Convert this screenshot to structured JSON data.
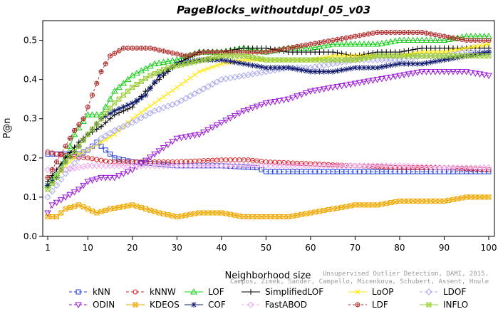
{
  "chart_data": {
    "type": "line",
    "title": "PageBlocks_withoutdupl_05_v03",
    "xlabel": "Neighborhood size",
    "ylabel": "P@n",
    "xlim": [
      1,
      100
    ],
    "ylim": [
      0,
      0.55
    ],
    "x_ticks": [
      1,
      10,
      20,
      30,
      40,
      50,
      60,
      70,
      80,
      90,
      100
    ],
    "y_ticks": [
      0.0,
      0.1,
      0.2,
      0.3,
      0.4,
      0.5
    ],
    "grid": false,
    "legend_position": "bottom",
    "credit": "Unsupervised Outlier Detection, DAMI, 2015.\nCampos, Zimek, Sander, Campello, Micenkova, Schubert, Assent, Houle",
    "series": [
      {
        "name": "kNN",
        "color": "#1f3fd6",
        "marker": "square-open",
        "dash": "4,3",
        "points": [
          [
            1,
            0.21
          ],
          [
            2,
            0.21
          ],
          [
            5,
            0.21
          ],
          [
            8,
            0.21
          ],
          [
            10,
            0.22
          ],
          [
            12,
            0.24
          ],
          [
            14,
            0.22
          ],
          [
            16,
            0.2
          ],
          [
            20,
            0.19
          ],
          [
            25,
            0.185
          ],
          [
            30,
            0.18
          ],
          [
            40,
            0.18
          ],
          [
            48,
            0.175
          ],
          [
            50,
            0.165
          ],
          [
            60,
            0.165
          ],
          [
            70,
            0.165
          ],
          [
            80,
            0.165
          ],
          [
            90,
            0.165
          ],
          [
            100,
            0.165
          ]
        ]
      },
      {
        "name": "kNNW",
        "color": "#d62020",
        "marker": "circle-open",
        "dash": "4,3",
        "points": [
          [
            1,
            0.215
          ],
          [
            3,
            0.21
          ],
          [
            6,
            0.205
          ],
          [
            10,
            0.2
          ],
          [
            15,
            0.19
          ],
          [
            20,
            0.19
          ],
          [
            30,
            0.19
          ],
          [
            40,
            0.195
          ],
          [
            46,
            0.195
          ],
          [
            50,
            0.19
          ],
          [
            60,
            0.185
          ],
          [
            70,
            0.18
          ],
          [
            80,
            0.175
          ],
          [
            90,
            0.175
          ],
          [
            100,
            0.17
          ]
        ]
      },
      {
        "name": "LOF",
        "color": "#19cc19",
        "marker": "triangle-up-open",
        "dash": "",
        "points": [
          [
            1,
            0.13
          ],
          [
            3,
            0.16
          ],
          [
            5,
            0.2
          ],
          [
            7,
            0.26
          ],
          [
            10,
            0.31
          ],
          [
            13,
            0.31
          ],
          [
            16,
            0.37
          ],
          [
            20,
            0.41
          ],
          [
            25,
            0.44
          ],
          [
            30,
            0.45
          ],
          [
            35,
            0.47
          ],
          [
            40,
            0.47
          ],
          [
            45,
            0.48
          ],
          [
            50,
            0.47
          ],
          [
            55,
            0.48
          ],
          [
            60,
            0.48
          ],
          [
            65,
            0.49
          ],
          [
            70,
            0.49
          ],
          [
            75,
            0.49
          ],
          [
            80,
            0.5
          ],
          [
            85,
            0.5
          ],
          [
            90,
            0.5
          ],
          [
            95,
            0.51
          ],
          [
            100,
            0.51
          ]
        ]
      },
      {
        "name": "SimplifiedLOF",
        "color": "#000000",
        "marker": "plus",
        "dash": "",
        "points": [
          [
            1,
            0.14
          ],
          [
            3,
            0.17
          ],
          [
            5,
            0.2
          ],
          [
            8,
            0.24
          ],
          [
            10,
            0.26
          ],
          [
            13,
            0.28
          ],
          [
            16,
            0.31
          ],
          [
            20,
            0.33
          ],
          [
            23,
            0.37
          ],
          [
            26,
            0.4
          ],
          [
            30,
            0.44
          ],
          [
            35,
            0.47
          ],
          [
            40,
            0.47
          ],
          [
            45,
            0.48
          ],
          [
            50,
            0.48
          ],
          [
            55,
            0.47
          ],
          [
            60,
            0.47
          ],
          [
            65,
            0.47
          ],
          [
            70,
            0.46
          ],
          [
            75,
            0.47
          ],
          [
            80,
            0.47
          ],
          [
            85,
            0.48
          ],
          [
            90,
            0.48
          ],
          [
            95,
            0.48
          ],
          [
            100,
            0.48
          ]
        ]
      },
      {
        "name": "LoOP",
        "color": "#ffe600",
        "marker": "x",
        "dash": "",
        "points": [
          [
            1,
            0.13
          ],
          [
            3,
            0.15
          ],
          [
            5,
            0.18
          ],
          [
            8,
            0.21
          ],
          [
            10,
            0.22
          ],
          [
            13,
            0.24
          ],
          [
            16,
            0.26
          ],
          [
            20,
            0.3
          ],
          [
            25,
            0.34
          ],
          [
            30,
            0.38
          ],
          [
            35,
            0.42
          ],
          [
            40,
            0.44
          ],
          [
            45,
            0.45
          ],
          [
            50,
            0.45
          ],
          [
            55,
            0.45
          ],
          [
            60,
            0.45
          ],
          [
            65,
            0.46
          ],
          [
            70,
            0.46
          ],
          [
            75,
            0.46
          ],
          [
            80,
            0.46
          ],
          [
            85,
            0.47
          ],
          [
            90,
            0.47
          ],
          [
            95,
            0.48
          ],
          [
            100,
            0.49
          ]
        ]
      },
      {
        "name": "LDOF",
        "color": "#a9a9ee",
        "marker": "diamond-open",
        "dash": "4,3",
        "points": [
          [
            1,
            0.1
          ],
          [
            3,
            0.13
          ],
          [
            5,
            0.16
          ],
          [
            8,
            0.2
          ],
          [
            10,
            0.22
          ],
          [
            13,
            0.25
          ],
          [
            16,
            0.27
          ],
          [
            20,
            0.29
          ],
          [
            25,
            0.32
          ],
          [
            30,
            0.34
          ],
          [
            35,
            0.37
          ],
          [
            40,
            0.4
          ],
          [
            45,
            0.41
          ],
          [
            50,
            0.42
          ],
          [
            55,
            0.43
          ],
          [
            60,
            0.43
          ],
          [
            65,
            0.44
          ],
          [
            70,
            0.45
          ],
          [
            75,
            0.45
          ],
          [
            80,
            0.45
          ],
          [
            85,
            0.46
          ],
          [
            90,
            0.46
          ],
          [
            95,
            0.47
          ],
          [
            100,
            0.47
          ]
        ]
      },
      {
        "name": "ODIN",
        "color": "#9a18d6",
        "marker": "triangle-down-open",
        "dash": "4,3",
        "points": [
          [
            1,
            0.06
          ],
          [
            2,
            0.08
          ],
          [
            5,
            0.1
          ],
          [
            8,
            0.12
          ],
          [
            10,
            0.14
          ],
          [
            13,
            0.15
          ],
          [
            16,
            0.15
          ],
          [
            20,
            0.17
          ],
          [
            25,
            0.21
          ],
          [
            30,
            0.25
          ],
          [
            35,
            0.26
          ],
          [
            40,
            0.29
          ],
          [
            45,
            0.32
          ],
          [
            50,
            0.34
          ],
          [
            55,
            0.35
          ],
          [
            60,
            0.37
          ],
          [
            65,
            0.38
          ],
          [
            70,
            0.39
          ],
          [
            75,
            0.4
          ],
          [
            80,
            0.41
          ],
          [
            85,
            0.42
          ],
          [
            90,
            0.42
          ],
          [
            95,
            0.42
          ],
          [
            100,
            0.41
          ]
        ]
      },
      {
        "name": "KDEOS",
        "color": "#f0a800",
        "marker": "square-x",
        "dash": "",
        "points": [
          [
            1,
            0.05
          ],
          [
            3,
            0.05
          ],
          [
            5,
            0.07
          ],
          [
            8,
            0.08
          ],
          [
            10,
            0.07
          ],
          [
            12,
            0.06
          ],
          [
            15,
            0.07
          ],
          [
            20,
            0.08
          ],
          [
            23,
            0.07
          ],
          [
            26,
            0.06
          ],
          [
            30,
            0.05
          ],
          [
            35,
            0.06
          ],
          [
            40,
            0.06
          ],
          [
            45,
            0.05
          ],
          [
            50,
            0.05
          ],
          [
            55,
            0.05
          ],
          [
            60,
            0.06
          ],
          [
            65,
            0.07
          ],
          [
            70,
            0.08
          ],
          [
            75,
            0.08
          ],
          [
            80,
            0.09
          ],
          [
            85,
            0.09
          ],
          [
            90,
            0.09
          ],
          [
            95,
            0.1
          ],
          [
            100,
            0.1
          ]
        ]
      },
      {
        "name": "COF",
        "color": "#101a70",
        "marker": "asterisk",
        "dash": "",
        "points": [
          [
            1,
            0.13
          ],
          [
            3,
            0.15
          ],
          [
            5,
            0.19
          ],
          [
            8,
            0.23
          ],
          [
            10,
            0.26
          ],
          [
            13,
            0.3
          ],
          [
            16,
            0.32
          ],
          [
            20,
            0.34
          ],
          [
            23,
            0.36
          ],
          [
            26,
            0.41
          ],
          [
            30,
            0.44
          ],
          [
            35,
            0.45
          ],
          [
            40,
            0.45
          ],
          [
            45,
            0.44
          ],
          [
            50,
            0.43
          ],
          [
            55,
            0.43
          ],
          [
            60,
            0.42
          ],
          [
            65,
            0.42
          ],
          [
            70,
            0.43
          ],
          [
            75,
            0.43
          ],
          [
            80,
            0.44
          ],
          [
            85,
            0.44
          ],
          [
            90,
            0.45
          ],
          [
            95,
            0.46
          ],
          [
            100,
            0.47
          ]
        ]
      },
      {
        "name": "FastABOD",
        "color": "#f0a8f0",
        "marker": "diamond-open",
        "dash": "4,3",
        "points": [
          [
            1,
            0.17
          ],
          [
            3,
            0.17
          ],
          [
            5,
            0.17
          ],
          [
            10,
            0.18
          ],
          [
            15,
            0.18
          ],
          [
            20,
            0.18
          ],
          [
            30,
            0.18
          ],
          [
            40,
            0.18
          ],
          [
            50,
            0.18
          ],
          [
            60,
            0.18
          ],
          [
            70,
            0.18
          ],
          [
            80,
            0.18
          ],
          [
            90,
            0.175
          ],
          [
            100,
            0.175
          ]
        ]
      },
      {
        "name": "LDF",
        "color": "#b02a2a",
        "marker": "circle-plus",
        "dash": "3,3",
        "points": [
          [
            1,
            0.15
          ],
          [
            3,
            0.19
          ],
          [
            5,
            0.23
          ],
          [
            7,
            0.27
          ],
          [
            9,
            0.3
          ],
          [
            11,
            0.36
          ],
          [
            13,
            0.42
          ],
          [
            15,
            0.46
          ],
          [
            18,
            0.48
          ],
          [
            20,
            0.48
          ],
          [
            24,
            0.48
          ],
          [
            28,
            0.47
          ],
          [
            32,
            0.46
          ],
          [
            36,
            0.47
          ],
          [
            40,
            0.47
          ],
          [
            45,
            0.47
          ],
          [
            50,
            0.47
          ],
          [
            55,
            0.48
          ],
          [
            60,
            0.49
          ],
          [
            65,
            0.5
          ],
          [
            70,
            0.51
          ],
          [
            75,
            0.52
          ],
          [
            80,
            0.52
          ],
          [
            85,
            0.52
          ],
          [
            90,
            0.51
          ],
          [
            95,
            0.5
          ],
          [
            100,
            0.5
          ]
        ]
      },
      {
        "name": "INFLO",
        "color": "#99cc33",
        "marker": "square-x",
        "dash": "",
        "points": [
          [
            1,
            0.12
          ],
          [
            3,
            0.15
          ],
          [
            5,
            0.19
          ],
          [
            8,
            0.23
          ],
          [
            10,
            0.26
          ],
          [
            13,
            0.3
          ],
          [
            16,
            0.34
          ],
          [
            20,
            0.38
          ],
          [
            24,
            0.41
          ],
          [
            28,
            0.43
          ],
          [
            32,
            0.44
          ],
          [
            36,
            0.45
          ],
          [
            40,
            0.46
          ],
          [
            45,
            0.46
          ],
          [
            50,
            0.45
          ],
          [
            55,
            0.45
          ],
          [
            60,
            0.45
          ],
          [
            65,
            0.45
          ],
          [
            70,
            0.45
          ],
          [
            75,
            0.46
          ],
          [
            80,
            0.46
          ],
          [
            85,
            0.46
          ],
          [
            90,
            0.46
          ],
          [
            95,
            0.46
          ],
          [
            100,
            0.46
          ]
        ]
      }
    ],
    "legend_rows": [
      [
        "kNN",
        "kNNW",
        "LOF",
        "SimplifiedLOF",
        "LoOP",
        "LDOF"
      ],
      [
        "ODIN",
        "KDEOS",
        "COF",
        "FastABOD",
        "LDF",
        "INFLO"
      ]
    ]
  }
}
